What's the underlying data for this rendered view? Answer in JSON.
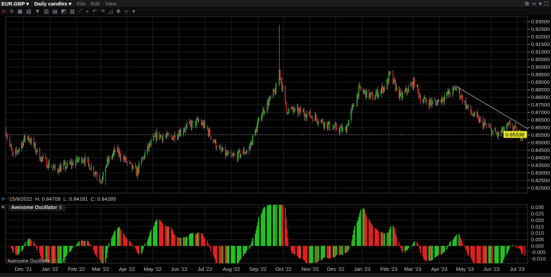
{
  "menubar": {
    "symbol": "EUR.GBP ▾",
    "period": "Daily candles ▾",
    "items": [
      "File",
      "Edit",
      "View"
    ]
  },
  "toolbar_icons": [
    "close-icon",
    "crosshair-icon",
    "chart-icon",
    "chart-settings-icon",
    "filter-icon",
    "bar-icon",
    "candle-icon",
    "line-icon",
    "draw-icon",
    "fib-icon",
    "cross-icon",
    "undo-icon",
    "redo-icon",
    "zoom-icon",
    "move-icon",
    "split-icon",
    "more-icon"
  ],
  "right_icons": [
    "gear-icon",
    "link-icon",
    "dropdown-icon",
    "fullscreen-icon"
  ],
  "info_line": {
    "date": "15/8/2022",
    "high_label": "H:",
    "high": "0.84709",
    "low_label": "L:",
    "low": "0.84191",
    "close_label": "C:",
    "close": "0.84285"
  },
  "indicator": {
    "title": "Awesome Oscillator",
    "value_label": "Awesome Oscillator:",
    "value": "-0.002"
  },
  "colors": {
    "up": "#22c022",
    "down": "#e02020",
    "price_label": "#e6e62a",
    "trendline": "#bbbbbb"
  },
  "chart_data": [
    {
      "type": "candlestick",
      "symbol": "EUR.GBP",
      "period": "Daily",
      "price_ticks": [
        "0.93000",
        "0.92500",
        "0.92000",
        "0.91500",
        "0.91000",
        "0.90500",
        "0.90000",
        "0.89500",
        "0.89000",
        "0.88500",
        "0.88000",
        "0.87500",
        "0.87000",
        "0.86500",
        "0.86000",
        "0.85500",
        "0.85000",
        "0.84500",
        "0.84000",
        "0.83500",
        "0.83000",
        "0.82500",
        "0.82000"
      ],
      "ylim": [
        0.8165,
        0.9335
      ],
      "last_price": "0.85538",
      "approx_closes": [
        [
          "2021-11-10",
          0.858
        ],
        [
          "2021-11-19",
          0.84
        ],
        [
          "2021-12-05",
          0.855
        ],
        [
          "2021-12-21",
          0.84
        ],
        [
          "2022-01-07",
          0.832
        ],
        [
          "2022-01-23",
          0.835
        ],
        [
          "2022-02-08",
          0.84
        ],
        [
          "2022-03-03",
          0.825
        ],
        [
          "2022-03-07",
          0.835
        ],
        [
          "2022-03-19",
          0.845
        ],
        [
          "2022-04-12",
          0.83
        ],
        [
          "2022-04-24",
          0.845
        ],
        [
          "2022-05-06",
          0.855
        ],
        [
          "2022-05-22",
          0.853
        ],
        [
          "2022-06-08",
          0.86
        ],
        [
          "2022-06-24",
          0.864
        ],
        [
          "2022-07-02",
          0.86
        ],
        [
          "2022-07-18",
          0.845
        ],
        [
          "2022-08-01",
          0.84
        ],
        [
          "2022-08-21",
          0.845
        ],
        [
          "2022-09-06",
          0.87
        ],
        [
          "2022-09-22",
          0.885
        ],
        [
          "2022-09-26",
          0.898
        ],
        [
          "2022-10-04",
          0.872
        ],
        [
          "2022-10-24",
          0.87
        ],
        [
          "2022-11-09",
          0.866
        ],
        [
          "2022-11-26",
          0.86
        ],
        [
          "2022-12-12",
          0.858
        ],
        [
          "2022-12-28",
          0.885
        ],
        [
          "2023-01-13",
          0.88
        ],
        [
          "2023-01-29",
          0.888
        ],
        [
          "2023-02-02",
          0.895
        ],
        [
          "2023-02-15",
          0.88
        ],
        [
          "2023-03-03",
          0.89
        ],
        [
          "2023-03-11",
          0.878
        ],
        [
          "2023-03-27",
          0.876
        ],
        [
          "2023-04-21",
          0.886
        ],
        [
          "2023-05-07",
          0.87
        ],
        [
          "2023-05-23",
          0.862
        ],
        [
          "2023-06-08",
          0.855
        ],
        [
          "2023-06-24",
          0.862
        ],
        [
          "2023-07-02",
          0.855
        ],
        [
          "2023-07-10",
          0.8554
        ]
      ],
      "spike_high": {
        "date": "2022-09-26",
        "value": 0.928
      },
      "low_extreme": {
        "date": "2022-03-07",
        "value": 0.822
      },
      "trendline": [
        [
          "2023-04-20",
          0.8875
        ],
        [
          "2023-07-14",
          0.859
        ]
      ]
    },
    {
      "type": "bar",
      "name": "Awesome Oscillator",
      "ticks": [
        "0.030",
        "0.025",
        "0.020",
        "0.015",
        "0.010",
        "0.005",
        "0.000",
        "-0.005",
        "-0.010"
      ],
      "ylim": [
        -0.0135,
        0.032
      ],
      "x_ticks": [
        "Dec '21",
        "Jan '22",
        "Feb '22",
        "Mar '22",
        "Apr '22",
        "May '22",
        "Jun '22",
        "Jul '22",
        "Aug '22",
        "Sep '22",
        "Oct '22",
        "Nov '22",
        "Dec '22",
        "Jan '23",
        "Feb '23",
        "Mar '23",
        "Apr '23",
        "May '23",
        "Jun '23",
        "Jul '23"
      ]
    }
  ]
}
